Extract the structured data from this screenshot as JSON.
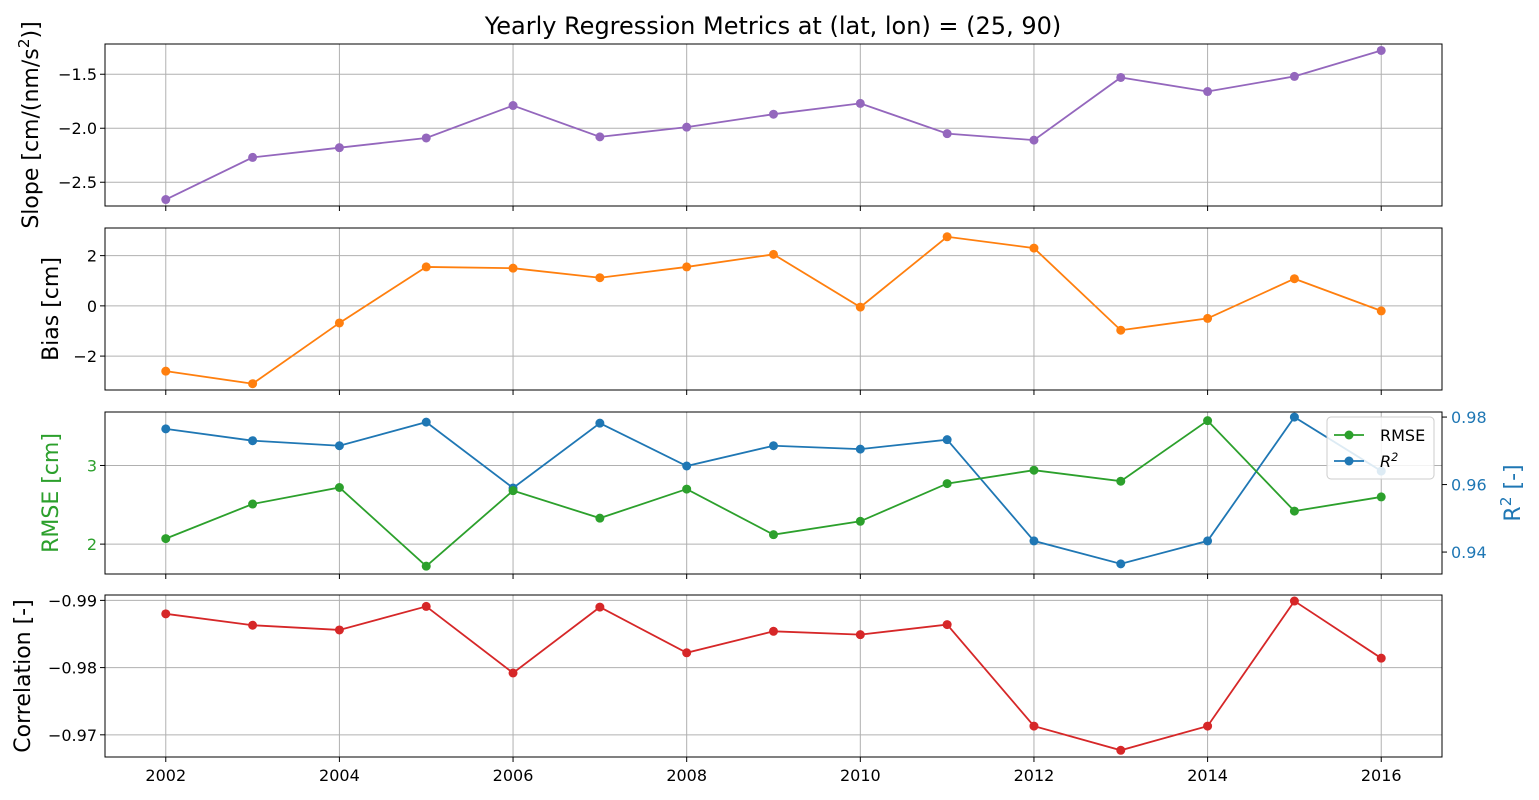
{
  "chart_data": {
    "type": "line",
    "title": "Yearly Regression Metrics at (lat, lon) = (25, 90)",
    "x": [
      2002,
      2003,
      2004,
      2005,
      2006,
      2007,
      2008,
      2009,
      2010,
      2011,
      2012,
      2013,
      2014,
      2015,
      2016
    ],
    "x_ticks": [
      "2002",
      "2004",
      "2006",
      "2008",
      "2010",
      "2012",
      "2014",
      "2016"
    ],
    "grid": true,
    "panels": [
      {
        "ylabel": "Slope [cm/(nm/s²)]",
        "ylim": [
          -2.72,
          -1.22
        ],
        "yticks": [
          -2.5,
          -2.0,
          -1.5
        ],
        "ytick_labels": [
          "−2.5",
          "−2.0",
          "−1.5"
        ],
        "series": [
          {
            "color": "#9467bd",
            "values": [
              -2.66,
              -2.27,
              -2.18,
              -2.09,
              -1.79,
              -2.08,
              -1.99,
              -1.87,
              -1.77,
              -2.05,
              -2.11,
              -1.53,
              -1.66,
              -1.52,
              -1.28
            ]
          }
        ]
      },
      {
        "ylabel": "Bias [cm]",
        "ylim": [
          -3.35,
          3.1
        ],
        "yticks": [
          -2,
          0,
          2
        ],
        "ytick_labels": [
          "−2",
          "0",
          "2"
        ],
        "series": [
          {
            "color": "#ff7f0e",
            "values": [
              -2.6,
              -3.1,
              -0.68,
              1.55,
              1.5,
              1.12,
              1.55,
              2.05,
              -0.05,
              2.75,
              2.3,
              -0.97,
              -0.5,
              1.08,
              -0.2
            ]
          }
        ]
      },
      {
        "ylabel": "RMSE [cm]",
        "ylabel_color": "#2ca02c",
        "ylim": [
          1.62,
          3.68
        ],
        "yticks": [
          2,
          3
        ],
        "ytick_labels": [
          "2",
          "3"
        ],
        "series": [
          {
            "name": "RMSE",
            "color": "#2ca02c",
            "values": [
              2.07,
              2.51,
              2.72,
              1.72,
              2.68,
              2.33,
              2.7,
              2.12,
              2.29,
              2.77,
              2.94,
              2.8,
              3.57,
              2.42,
              2.6
            ]
          }
        ],
        "right_axis": {
          "ylabel": "R² [-]",
          "color": "#1f77b4",
          "ylim": [
            0.9335,
            0.9815
          ],
          "yticks": [
            0.94,
            0.96,
            0.98
          ],
          "ytick_labels": [
            "0.94",
            "0.96",
            "0.98"
          ],
          "series": [
            {
              "name": "R²",
              "color": "#1f77b4",
              "values": [
                0.9765,
                0.973,
                0.9715,
                0.9785,
                0.959,
                0.9782,
                0.9655,
                0.9715,
                0.9705,
                0.9733,
                0.9433,
                0.9365,
                0.9433,
                0.98,
                0.964
              ]
            }
          ]
        },
        "legend": {
          "placement": "upper right",
          "entries": [
            "RMSE",
            "R²"
          ]
        }
      },
      {
        "ylabel": "Correlation [-]",
        "ylim": [
          -0.9667,
          -0.9908
        ],
        "yticks": [
          -0.99,
          -0.98,
          -0.97
        ],
        "ytick_labels": [
          "−0.99",
          "−0.98",
          "−0.97"
        ],
        "series": [
          {
            "color": "#d62728",
            "values": [
              -0.988,
              -0.9863,
              -0.9856,
              -0.9891,
              -0.9792,
              -0.989,
              -0.9822,
              -0.9854,
              -0.9849,
              -0.9864,
              -0.9713,
              -0.9677,
              -0.9713,
              -0.9899,
              -0.9814
            ]
          }
        ]
      }
    ]
  }
}
